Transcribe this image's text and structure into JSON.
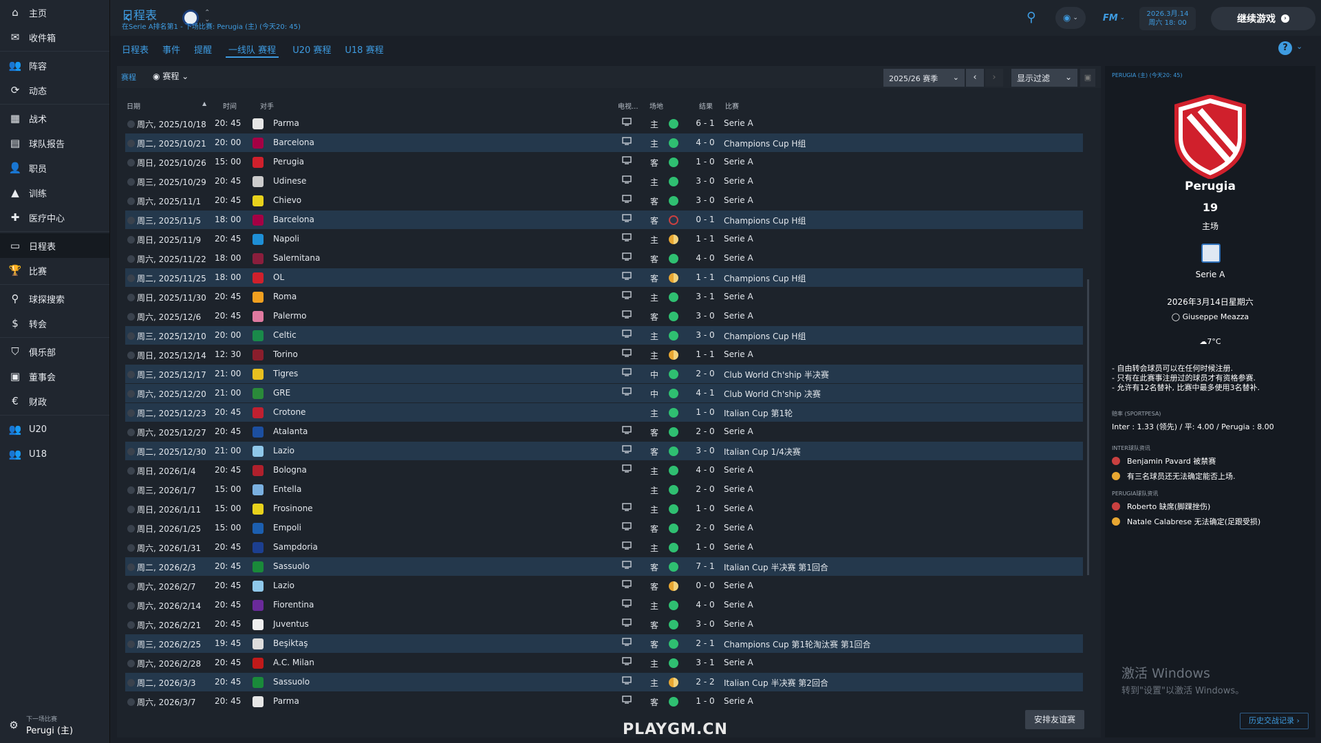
{
  "sidebar": {
    "items": [
      {
        "label": "主页",
        "icon": "home-icon",
        "glyph": "⌂"
      },
      {
        "label": "收件箱",
        "icon": "inbox-icon",
        "glyph": "✉"
      },
      {
        "label": "阵容",
        "icon": "squad-icon",
        "glyph": "👥"
      },
      {
        "label": "动态",
        "icon": "dynamics-icon",
        "glyph": "⟳"
      },
      {
        "label": "战术",
        "icon": "tactics-icon",
        "glyph": "▦"
      },
      {
        "label": "球队报告",
        "icon": "report-icon",
        "glyph": "▤"
      },
      {
        "label": "职员",
        "icon": "staff-icon",
        "glyph": "👤"
      },
      {
        "label": "训练",
        "icon": "training-icon",
        "glyph": "▲"
      },
      {
        "label": "医疗中心",
        "icon": "medical-icon",
        "glyph": "✚"
      },
      {
        "label": "日程表",
        "icon": "calendar-icon",
        "glyph": "▭"
      },
      {
        "label": "比赛",
        "icon": "trophy-icon",
        "glyph": "🏆"
      },
      {
        "label": "球探搜索",
        "icon": "search-icon",
        "glyph": "⚲"
      },
      {
        "label": "转会",
        "icon": "transfer-icon",
        "glyph": "$"
      },
      {
        "label": "俱乐部",
        "icon": "club-icon",
        "glyph": "⛉"
      },
      {
        "label": "董事会",
        "icon": "board-icon",
        "glyph": "▣"
      },
      {
        "label": "财政",
        "icon": "finance-icon",
        "glyph": "€"
      },
      {
        "label": "U20",
        "icon": "u20-icon",
        "glyph": "👥"
      },
      {
        "label": "U18",
        "icon": "u18-icon",
        "glyph": "👥"
      }
    ],
    "next_match_label": "下一场比赛",
    "next_match_value": "Perugi (主)"
  },
  "header": {
    "title": "日程表",
    "subtitle": "在Serie A排名第1 - 下场比赛: Perugia (主) (今天20: 45)",
    "date_line1": "2026.3月.14",
    "date_line2": "周六 18: 00",
    "continue_label": "继续游戏",
    "fm_label": "FM"
  },
  "tabs": [
    "日程表",
    "事件",
    "提醒",
    "一线队 赛程",
    "U20 赛程",
    "U18 赛程"
  ],
  "active_tab": 3,
  "filters": {
    "fixtures_label": "赛程",
    "view_label": "赛程",
    "season": "2025/26 赛季",
    "filter_label": "显示过滤"
  },
  "columns": {
    "date": "日期",
    "time": "时间",
    "opponent": "对手",
    "tv": "电视...",
    "venue": "场地",
    "result": "结果",
    "competition": "比赛"
  },
  "fixtures": [
    {
      "date": "周六, 2025/10/18",
      "time": "20: 45",
      "opp": "Parma",
      "tv": true,
      "venue": "主",
      "res": "win",
      "score": "6 - 1",
      "comp": "Serie A",
      "hl": false,
      "badge": "#e6e6e6"
    },
    {
      "date": "周二, 2025/10/21",
      "time": "20: 00",
      "opp": "Barcelona",
      "tv": true,
      "venue": "主",
      "res": "win",
      "score": "4 - 0",
      "comp": "Champions Cup H组",
      "hl": true,
      "badge": "#a50044"
    },
    {
      "date": "周日, 2025/10/26",
      "time": "15: 00",
      "opp": "Perugia",
      "tv": true,
      "venue": "客",
      "res": "win",
      "score": "1 - 0",
      "comp": "Serie A",
      "hl": false,
      "badge": "#d0202c"
    },
    {
      "date": "周三, 2025/10/29",
      "time": "20: 45",
      "opp": "Udinese",
      "tv": true,
      "venue": "主",
      "res": "win",
      "score": "3 - 0",
      "comp": "Serie A",
      "hl": false,
      "badge": "#cccccc"
    },
    {
      "date": "周六, 2025/11/1",
      "time": "20: 45",
      "opp": "Chievo",
      "tv": true,
      "venue": "客",
      "res": "win",
      "score": "3 - 0",
      "comp": "Serie A",
      "hl": false,
      "badge": "#e8d21c"
    },
    {
      "date": "周三, 2025/11/5",
      "time": "18: 00",
      "opp": "Barcelona",
      "tv": true,
      "venue": "客",
      "res": "loss",
      "score": "0 - 1",
      "comp": "Champions Cup H组",
      "hl": true,
      "badge": "#a50044"
    },
    {
      "date": "周日, 2025/11/9",
      "time": "20: 45",
      "opp": "Napoli",
      "tv": true,
      "venue": "主",
      "res": "draw",
      "score": "1 - 1",
      "comp": "Serie A",
      "hl": false,
      "badge": "#1e8fd6"
    },
    {
      "date": "周六, 2025/11/22",
      "time": "18: 00",
      "opp": "Salernitana",
      "tv": true,
      "venue": "客",
      "res": "win",
      "score": "4 - 0",
      "comp": "Serie A",
      "hl": false,
      "badge": "#8a1e3c"
    },
    {
      "date": "周二, 2025/11/25",
      "time": "18: 00",
      "opp": "OL",
      "tv": true,
      "venue": "客",
      "res": "draw",
      "score": "1 - 1",
      "comp": "Champions Cup H组",
      "hl": true,
      "badge": "#d0202c"
    },
    {
      "date": "周日, 2025/11/30",
      "time": "20: 45",
      "opp": "Roma",
      "tv": true,
      "venue": "主",
      "res": "win",
      "score": "3 - 1",
      "comp": "Serie A",
      "hl": false,
      "badge": "#f0a020"
    },
    {
      "date": "周六, 2025/12/6",
      "time": "20: 45",
      "opp": "Palermo",
      "tv": true,
      "venue": "客",
      "res": "win",
      "score": "3 - 0",
      "comp": "Serie A",
      "hl": false,
      "badge": "#e07aa0"
    },
    {
      "date": "周三, 2025/12/10",
      "time": "20: 00",
      "opp": "Celtic",
      "tv": true,
      "venue": "主",
      "res": "win",
      "score": "3 - 0",
      "comp": "Champions Cup H组",
      "hl": true,
      "badge": "#1a8a4a"
    },
    {
      "date": "周日, 2025/12/14",
      "time": "12: 30",
      "opp": "Torino",
      "tv": true,
      "venue": "主",
      "res": "draw",
      "score": "1 - 1",
      "comp": "Serie A",
      "hl": false,
      "badge": "#8a1e2c"
    },
    {
      "date": "周三, 2025/12/17",
      "time": "21: 00",
      "opp": "Tigres",
      "tv": true,
      "venue": "中",
      "res": "win",
      "score": "2 - 0",
      "comp": "Club World Ch'ship 半决赛",
      "hl": true,
      "badge": "#e8c020"
    },
    {
      "date": "周六, 2025/12/20",
      "time": "21: 00",
      "opp": "GRE",
      "tv": true,
      "venue": "中",
      "res": "win",
      "score": "4 - 1",
      "comp": "Club World Ch'ship 决赛",
      "hl": true,
      "badge": "#2a8a3a"
    },
    {
      "date": "周二, 2025/12/23",
      "time": "20: 45",
      "opp": "Crotone",
      "tv": false,
      "venue": "主",
      "res": "win",
      "score": "1 - 0",
      "comp": "Italian Cup 第1轮",
      "hl": true,
      "badge": "#c02030"
    },
    {
      "date": "周六, 2025/12/27",
      "time": "20: 45",
      "opp": "Atalanta",
      "tv": true,
      "venue": "客",
      "res": "win",
      "score": "2 - 0",
      "comp": "Serie A",
      "hl": false,
      "badge": "#1c4fa0"
    },
    {
      "date": "周二, 2025/12/30",
      "time": "21: 00",
      "opp": "Lazio",
      "tv": true,
      "venue": "客",
      "res": "win",
      "score": "3 - 0",
      "comp": "Italian Cup 1/4决赛",
      "hl": true,
      "badge": "#8fc8ea"
    },
    {
      "date": "周日, 2026/1/4",
      "time": "20: 45",
      "opp": "Bologna",
      "tv": true,
      "venue": "主",
      "res": "win",
      "score": "4 - 0",
      "comp": "Serie A",
      "hl": false,
      "badge": "#b0202c"
    },
    {
      "date": "周三, 2026/1/7",
      "time": "15: 00",
      "opp": "Entella",
      "tv": false,
      "venue": "主",
      "res": "win",
      "score": "2 - 0",
      "comp": "Serie A",
      "hl": false,
      "badge": "#7ab0e0"
    },
    {
      "date": "周日, 2026/1/11",
      "time": "15: 00",
      "opp": "Frosinone",
      "tv": true,
      "venue": "主",
      "res": "win",
      "score": "1 - 0",
      "comp": "Serie A",
      "hl": false,
      "badge": "#e8d21c"
    },
    {
      "date": "周日, 2026/1/25",
      "time": "15: 00",
      "opp": "Empoli",
      "tv": true,
      "venue": "客",
      "res": "win",
      "score": "2 - 0",
      "comp": "Serie A",
      "hl": false,
      "badge": "#1c5fb0"
    },
    {
      "date": "周六, 2026/1/31",
      "time": "20: 45",
      "opp": "Sampdoria",
      "tv": true,
      "venue": "主",
      "res": "win",
      "score": "1 - 0",
      "comp": "Serie A",
      "hl": false,
      "badge": "#1c3f90"
    },
    {
      "date": "周二, 2026/2/3",
      "time": "20: 45",
      "opp": "Sassuolo",
      "tv": true,
      "venue": "客",
      "res": "win",
      "score": "7 - 1",
      "comp": "Italian Cup 半决赛 第1回合",
      "hl": true,
      "badge": "#1a8a3a"
    },
    {
      "date": "周六, 2026/2/7",
      "time": "20: 45",
      "opp": "Lazio",
      "tv": true,
      "venue": "客",
      "res": "draw",
      "score": "0 - 0",
      "comp": "Serie A",
      "hl": false,
      "badge": "#8fc8ea"
    },
    {
      "date": "周六, 2026/2/14",
      "time": "20: 45",
      "opp": "Fiorentina",
      "tv": true,
      "venue": "主",
      "res": "win",
      "score": "4 - 0",
      "comp": "Serie A",
      "hl": false,
      "badge": "#6a2a9a"
    },
    {
      "date": "周六, 2026/2/21",
      "time": "20: 45",
      "opp": "Juventus",
      "tv": true,
      "venue": "客",
      "res": "win",
      "score": "3 - 0",
      "comp": "Serie A",
      "hl": false,
      "badge": "#eeeeee"
    },
    {
      "date": "周三, 2026/2/25",
      "time": "19: 45",
      "opp": "Beşiktaş",
      "tv": true,
      "venue": "客",
      "res": "win",
      "score": "2 - 1",
      "comp": "Champions Cup 第1轮淘汰赛 第1回合",
      "hl": true,
      "badge": "#dddddd"
    },
    {
      "date": "周六, 2026/2/28",
      "time": "20: 45",
      "opp": "A.C. Milan",
      "tv": true,
      "venue": "主",
      "res": "win",
      "score": "3 - 1",
      "comp": "Serie A",
      "hl": false,
      "badge": "#c01a1a"
    },
    {
      "date": "周二, 2026/3/3",
      "time": "20: 45",
      "opp": "Sassuolo",
      "tv": true,
      "venue": "主",
      "res": "draw",
      "score": "2 - 2",
      "comp": "Italian Cup 半决赛 第2回合",
      "hl": true,
      "badge": "#1a8a3a"
    },
    {
      "date": "周六, 2026/3/7",
      "time": "20: 45",
      "opp": "Parma",
      "tv": true,
      "venue": "客",
      "res": "win",
      "score": "1 - 0",
      "comp": "Serie A",
      "hl": false,
      "badge": "#e6e6e6"
    }
  ],
  "result_colors": {
    "win": "#2fbf71",
    "draw": "#e8a732",
    "loss": "#c94040"
  },
  "friendly_button": "安排友谊赛",
  "center_watermark": "PLAYGM.CN",
  "right_panel": {
    "header": "PERUGIA (主) (今天20: 45)",
    "team": "Perugia",
    "position": "19",
    "home": "主场",
    "competition": "Serie A",
    "date": "2026年3月14日星期六",
    "stadium": "Giuseppe Meazza",
    "weather": "7°C",
    "rules": [
      "- 自由转会球员可以在任何时候注册.",
      "- 只有在此赛事注册过的球员才有资格参赛.",
      "- 允许有12名替补, 比赛中最多使用3名替补."
    ],
    "odds_label": "赔率 (SPORTPESA)",
    "odds": "Inter : 1.33 (领先) / 平: 4.00 / Perugia : 8.00",
    "inter_news_label": "INTER球队资讯",
    "inter_news": [
      "Benjamin Pavard 被禁赛",
      "有三名球员还无法确定能否上场."
    ],
    "perugia_news_label": "PERUGIA球队资讯",
    "perugia_news": [
      "Roberto 缺席(脚踝挫伤)",
      "Natale Calabrese 无法确定(足跟受损)"
    ],
    "activate_title": "激活 Windows",
    "activate_sub": "转到\"设置\"以激活 Windows。",
    "history_button": "历史交战记录"
  }
}
